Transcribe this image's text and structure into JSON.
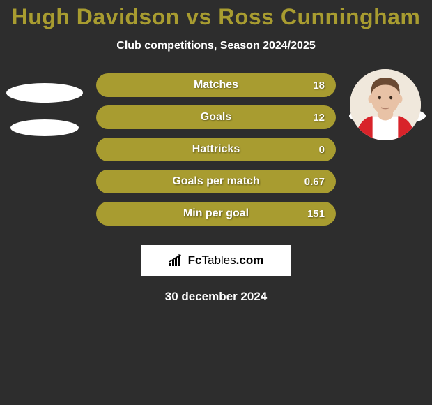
{
  "title_color": "#a89c30",
  "title": "Hugh Davidson vs Ross Cunningham",
  "subtitle": "Club competitions, Season 2024/2025",
  "bar_color": "#a89c30",
  "stats": [
    {
      "label": "Matches",
      "value": "18"
    },
    {
      "label": "Goals",
      "value": "12"
    },
    {
      "label": "Hattricks",
      "value": "0"
    },
    {
      "label": "Goals per match",
      "value": "0.67"
    },
    {
      "label": "Min per goal",
      "value": "151"
    }
  ],
  "logo": {
    "brand1": "Fc",
    "brand2": "Tables",
    "suffix": ".com"
  },
  "date": "30 december 2024",
  "left_player": {
    "has_photo": false
  },
  "right_player": {
    "has_photo": true
  },
  "avatar_colors": {
    "skin": "#e8c2a6",
    "hair": "#6b4a33",
    "shirt_main": "#d8232a",
    "shirt_stripe": "#ffffff",
    "bg": "#f0e8dc"
  }
}
